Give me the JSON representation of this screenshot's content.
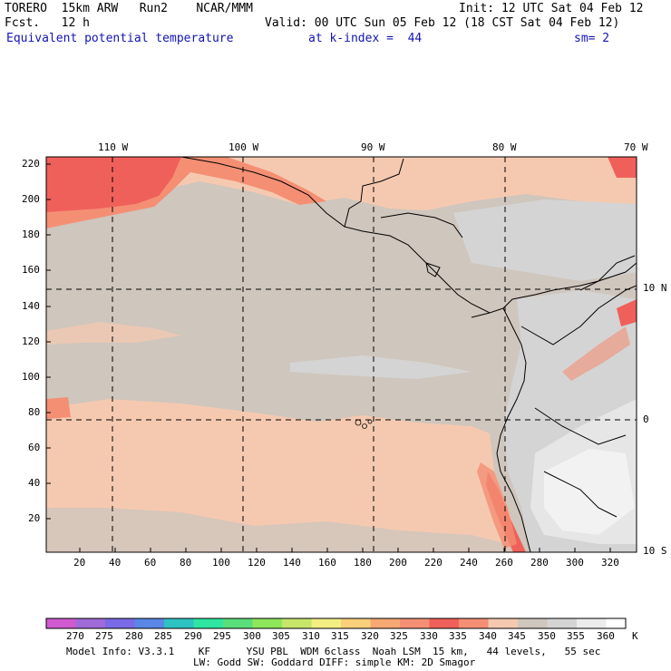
{
  "header": {
    "model": "TORERO  15km ARW   Run2    NCAR/MMM",
    "init": "Init: 12 UTC Sat 04 Feb 12",
    "forecast": "Fcst.   12 h",
    "valid": "Valid: 00 UTC Sun 05 Feb 12 (18 CST Sat 04 Feb 12)",
    "field": "Equivalent potential temperature",
    "kindex": "at k-index =  44",
    "smoothing": "sm= 2"
  },
  "colors": {
    "field_text": "#1414b4",
    "base_field": "#cfc6bd",
    "warm_field": "#f5c9b0",
    "hot_field": "#f48f74",
    "hottest_field": "#f0605a",
    "cool_field": "#d4d4d4",
    "coldest_field": "#ececec"
  },
  "axes": {
    "top_labels": [
      "110 W",
      "100 W",
      "90 W",
      "80 W",
      "70 W"
    ],
    "right_labels": [
      "10 N",
      "0",
      "10 S"
    ],
    "left_ticks": [
      "220",
      "200",
      "180",
      "160",
      "140",
      "120",
      "100",
      "80",
      "60",
      "40",
      "20"
    ],
    "bottom_ticks": [
      "20",
      "40",
      "60",
      "80",
      "100",
      "120",
      "140",
      "160",
      "180",
      "200",
      "220",
      "240",
      "260",
      "280",
      "300",
      "320"
    ]
  },
  "colorbar": {
    "labels": [
      "270",
      "275",
      "280",
      "285",
      "290",
      "295",
      "300",
      "305",
      "310",
      "315",
      "320",
      "325",
      "330",
      "335",
      "340",
      "345",
      "350",
      "355",
      "360"
    ],
    "unit": "K",
    "colors": [
      "#d05ad0",
      "#a06ad8",
      "#7a6ae6",
      "#5a86e6",
      "#2ec2c2",
      "#2ee6a2",
      "#5ade7a",
      "#8ee65a",
      "#c6e66a",
      "#f2ee82",
      "#fad07a",
      "#f8a872",
      "#f48f74",
      "#f0605a",
      "#f48f74",
      "#f5c9b0",
      "#cfc6bd",
      "#d4d4d4",
      "#ececec",
      "#ffffff"
    ]
  },
  "footer": {
    "line1": "Model Info: V3.3.1    KF      YSU PBL  WDM 6class  Noah LSM  15 km,   44 levels,   55 sec",
    "line2": "LW: Godd SW: Goddard DIFF: simple KM: 2D Smagor"
  }
}
